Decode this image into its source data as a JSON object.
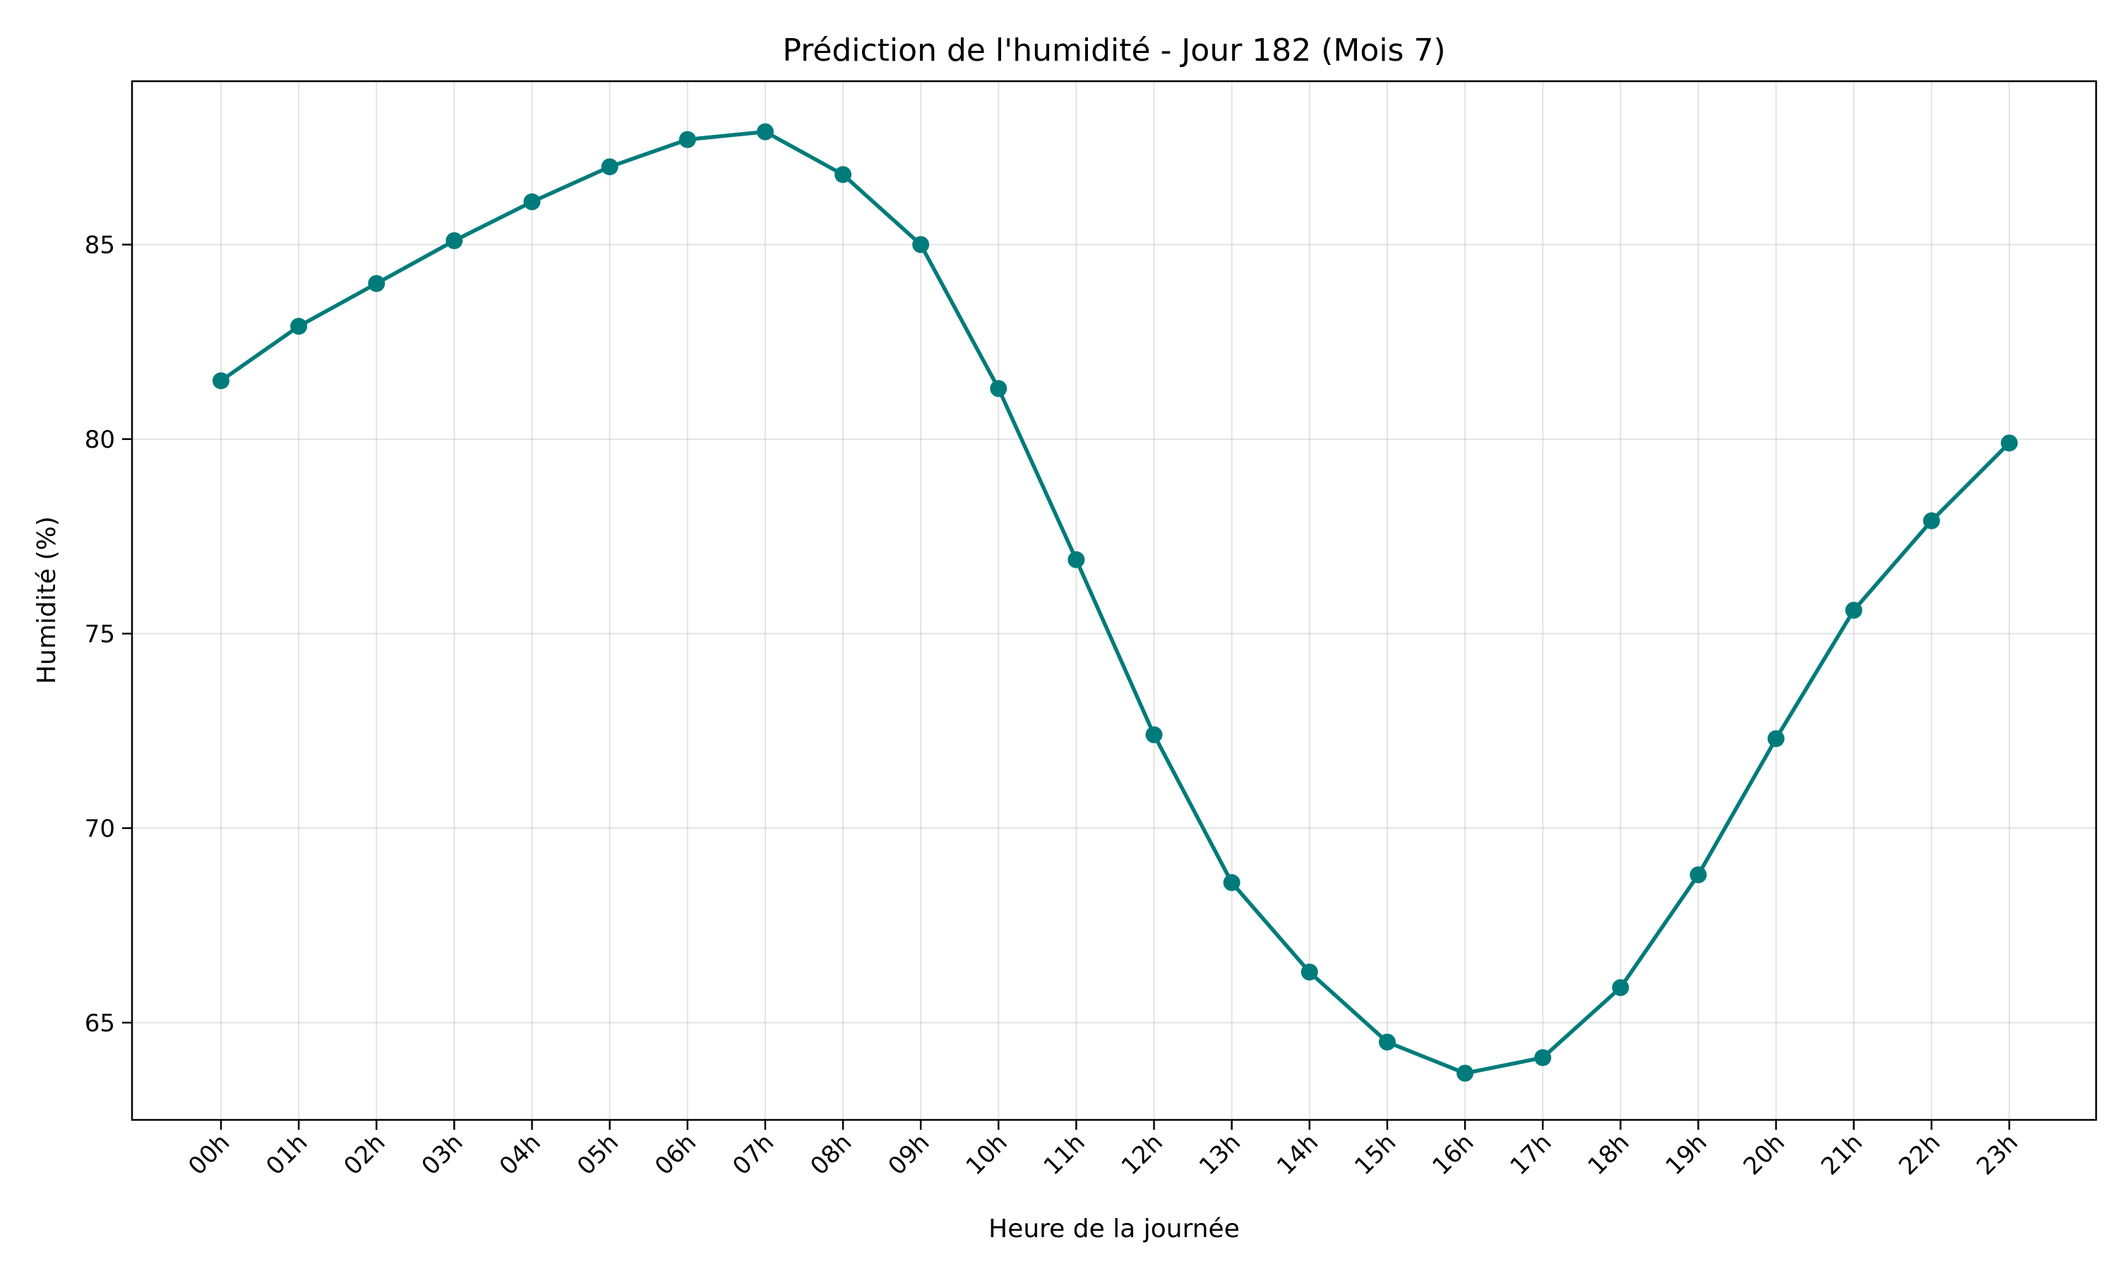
{
  "chart_data": {
    "type": "line",
    "title": "Prédiction de l'humidité - Jour 182 (Mois 7)",
    "xlabel": "Heure de la journée",
    "ylabel": "Humidité (%)",
    "categories": [
      "00h",
      "01h",
      "02h",
      "03h",
      "04h",
      "05h",
      "06h",
      "07h",
      "08h",
      "09h",
      "10h",
      "11h",
      "12h",
      "13h",
      "14h",
      "15h",
      "16h",
      "17h",
      "18h",
      "19h",
      "20h",
      "21h",
      "22h",
      "23h"
    ],
    "series": [
      {
        "values": [
          81.5,
          82.9,
          84.0,
          85.1,
          86.1,
          87.0,
          87.7,
          87.9,
          86.8,
          85.0,
          81.3,
          76.9,
          72.4,
          68.6,
          66.3,
          64.5,
          63.7,
          64.1,
          65.9,
          68.8,
          72.3,
          75.6,
          77.9,
          79.9
        ],
        "color": "#007b7b"
      }
    ],
    "ylim": [
      62.5,
      89.2
    ],
    "yticks": [
      65,
      70,
      75,
      80,
      85
    ],
    "grid": true,
    "legend": "none"
  }
}
